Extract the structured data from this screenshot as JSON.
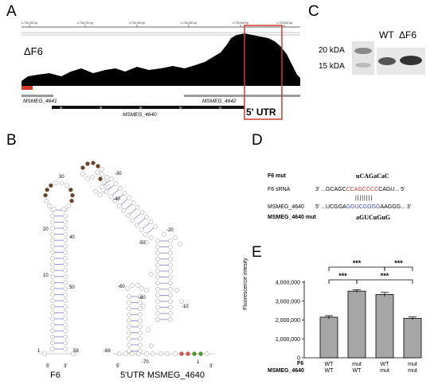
{
  "panels": {
    "a": "A",
    "b": "B",
    "c": "C",
    "d": "D",
    "e": "E"
  },
  "panel_a": {
    "track_label": "ΔF6",
    "ruler_ticks": [
      "4,735,000 bp",
      "4,735,200 bp",
      "4,735,300 bp",
      "4,735,400 bp",
      "4,735,500 bp",
      "4,735,600 bp"
    ],
    "gene_4641": "MSMEG_4641",
    "gene_4642": "MSMEG_4642",
    "gene_4640": "MSMEG_4640",
    "utr_label": "5' UTR",
    "highlight_color": "#d23a2a"
  },
  "panel_b": {
    "f6_label": "F6",
    "utr_label": "5'UTR MSMEG_4640",
    "f6_ticks": [
      "30",
      "20",
      "40",
      "10",
      "50",
      "1",
      "58"
    ],
    "utr_ticks": [
      "-30",
      "-40",
      "-20",
      "-50",
      "-60",
      "-60",
      "-10",
      "-89",
      "-70",
      "1",
      "3'",
      "5'",
      "5'",
      "3'"
    ],
    "colors": {
      "brown": "#6b4426",
      "green": "#4a9a2a",
      "red": "#d9534f",
      "pair": "#7c83d4"
    }
  },
  "panel_c": {
    "kda_20": "20 kDA",
    "kda_15": "15 kDA",
    "lane_wt": "WT",
    "lane_df6": "ΔF6"
  },
  "panel_d": {
    "f6_mut_label": "F6 mut",
    "f6_mut_seq": "uCAGaCaC",
    "f6_srna_label": "F6 sRNA",
    "f6_srna_prefix": "3' ...GCAGC",
    "f6_srna_core": "CCAGCCCC",
    "f6_srna_suffix": "CAGU... 5'",
    "pairs": "| | | | | | | |",
    "msmeg_label": "MSMEG_4640",
    "msmeg_prefix": "5' ...UCGGA",
    "msmeg_core": "GGUCGGGG",
    "msmeg_suffix": "AAGGG... 3'",
    "msmeg_mut_label": "MSMEG_4640 mut",
    "msmeg_mut_seq": "aGUCuGuG"
  },
  "panel_e": {
    "ylabel": "Fluorescence intesity",
    "row1_label": "F6",
    "row2_label": "MSMEG_4640",
    "sig": "***"
  },
  "chart_data": {
    "type": "bar",
    "categories": [
      "WT / WT",
      "mut / WT",
      "WT / mut",
      "mut / mut"
    ],
    "row1": [
      "WT",
      "mut",
      "WT",
      "mut"
    ],
    "row2": [
      "WT",
      "WT",
      "mut",
      "mut"
    ],
    "values": [
      2150000,
      3530000,
      3350000,
      2090000
    ],
    "errors": [
      80000,
      70000,
      110000,
      70000
    ],
    "ylabel": "Fluorescence intesity",
    "ylim": [
      0,
      4000000
    ],
    "yticks": [
      "0",
      "1,000,000",
      "2,000,000",
      "3,000,000",
      "4,000,000"
    ],
    "ytick_values": [
      0,
      1000000,
      2000000,
      3000000,
      4000000
    ],
    "significance": [
      {
        "from": 0,
        "to": 1,
        "label": "***"
      },
      {
        "from": 0,
        "to": 2,
        "label": "***"
      },
      {
        "from": 1,
        "to": 3,
        "label": "***"
      },
      {
        "from": 2,
        "to": 3,
        "label": "***"
      }
    ],
    "bar_color": "#a6a6a6"
  }
}
